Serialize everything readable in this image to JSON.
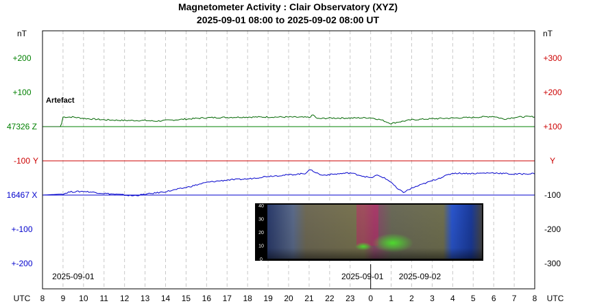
{
  "chart_data": {
    "type": "line",
    "title": "Magnetometer Activity : Clair Observatory (XYZ)",
    "subtitle": "2025-09-01 08:00 to 2025-09-02 08:00 UT",
    "left_unit": "nT",
    "right_unit": "nT",
    "x_axis_label": "UTC",
    "x_ticks": [
      "8",
      "9",
      "10",
      "11",
      "12",
      "13",
      "14",
      "15",
      "16",
      "17",
      "18",
      "19",
      "20",
      "21",
      "22",
      "23",
      "0",
      "1",
      "2",
      "3",
      "4",
      "5",
      "6",
      "7",
      "8"
    ],
    "x_range_hours": [
      0,
      24
    ],
    "grid": "vertical dashed at every hour",
    "date_labels": [
      {
        "text": "2025-09-01",
        "hour": 1.5
      },
      {
        "text": "2025-09-01",
        "hour": 15.6
      },
      {
        "text": "2025-09-02",
        "hour": 18.4
      }
    ],
    "midnight_hour": 16,
    "left_ticks": [
      {
        "text": "+200",
        "color": "#008000",
        "row": 0
      },
      {
        "text": "+100",
        "color": "#008000",
        "row": 1
      },
      {
        "text": "47326 Z",
        "color": "#008000",
        "row": 2
      },
      {
        "text": "-100",
        "color": "#cc0000",
        "row": 3
      },
      {
        "text": "Y",
        "color": "#cc0000",
        "row": 3,
        "inside": true
      },
      {
        "text": "16467 X",
        "color": "#0000cc",
        "row": 4
      },
      {
        "text": "+-100",
        "color": "#0000cc",
        "row": 5
      },
      {
        "text": "+-200",
        "color": "#0000cc",
        "row": 6
      }
    ],
    "right_ticks": [
      {
        "text": "+300",
        "color": "#cc0000",
        "row": 0
      },
      {
        "text": "+200",
        "color": "#cc0000",
        "row": 1
      },
      {
        "text": "+100",
        "color": "#cc0000",
        "row": 2
      },
      {
        "text": "Y",
        "color": "#cc0000",
        "row": 3
      },
      {
        "text": "-100",
        "color": "#000000",
        "row": 4
      },
      {
        "text": "-200",
        "color": "#000000",
        "row": 5
      },
      {
        "text": "-300",
        "color": "#000000",
        "row": 6
      }
    ],
    "annotation": {
      "text": "Artefact",
      "hour": 0.2
    },
    "series": [
      {
        "color": "#006600",
        "baseline_color": "#008000",
        "baseline_nT": 0,
        "points": [
          [
            0,
            0
          ],
          [
            0.9,
            0
          ],
          [
            1,
            28
          ],
          [
            1.5,
            28
          ],
          [
            2,
            24
          ],
          [
            3,
            20
          ],
          [
            4,
            18
          ],
          [
            5,
            18
          ],
          [
            5.5,
            16
          ],
          [
            6,
            18
          ],
          [
            7,
            22
          ],
          [
            8,
            26
          ],
          [
            9,
            27
          ],
          [
            10,
            28
          ],
          [
            11,
            28
          ],
          [
            12,
            28
          ],
          [
            13,
            27
          ],
          [
            13.2,
            34
          ],
          [
            13.4,
            23
          ],
          [
            14,
            25
          ],
          [
            15,
            25
          ],
          [
            16,
            26
          ],
          [
            16.5,
            20
          ],
          [
            17,
            9
          ],
          [
            17.3,
            13
          ],
          [
            18,
            20
          ],
          [
            19,
            23
          ],
          [
            20,
            25
          ],
          [
            21,
            27
          ],
          [
            22,
            30
          ],
          [
            22.5,
            22
          ],
          [
            23,
            27
          ],
          [
            23.5,
            29
          ],
          [
            24,
            29
          ]
        ]
      },
      {
        "color": "#0000cc",
        "baseline_color": "#0000cc",
        "baseline_nT": 0,
        "points": [
          [
            0,
            0
          ],
          [
            1,
            3
          ],
          [
            1.3,
            9
          ],
          [
            2,
            11
          ],
          [
            3,
            5
          ],
          [
            4,
            0
          ],
          [
            4.4,
            -2
          ],
          [
            5,
            2
          ],
          [
            6,
            10
          ],
          [
            7,
            22
          ],
          [
            8,
            37
          ],
          [
            9,
            44
          ],
          [
            10,
            47
          ],
          [
            11,
            55
          ],
          [
            12,
            59
          ],
          [
            12.8,
            63
          ],
          [
            13,
            74
          ],
          [
            13.2,
            70
          ],
          [
            13.6,
            58
          ],
          [
            14,
            60
          ],
          [
            15,
            65
          ],
          [
            16,
            50
          ],
          [
            16.3,
            58
          ],
          [
            16.6,
            52
          ],
          [
            17,
            38
          ],
          [
            17.3,
            18
          ],
          [
            17.6,
            8
          ],
          [
            18,
            20
          ],
          [
            19,
            42
          ],
          [
            20,
            64
          ],
          [
            21,
            63
          ],
          [
            22,
            65
          ],
          [
            23,
            61
          ],
          [
            24,
            63
          ]
        ]
      }
    ],
    "series_baseline_rows": [
      2,
      4
    ],
    "y_scale_nT_per_row": 100,
    "y_rows": [
      -2,
      4
    ],
    "inset": {
      "kind": "auroral spectrogram image",
      "y_ticks": [
        "40",
        "30",
        "20",
        "10",
        "0"
      ]
    }
  }
}
